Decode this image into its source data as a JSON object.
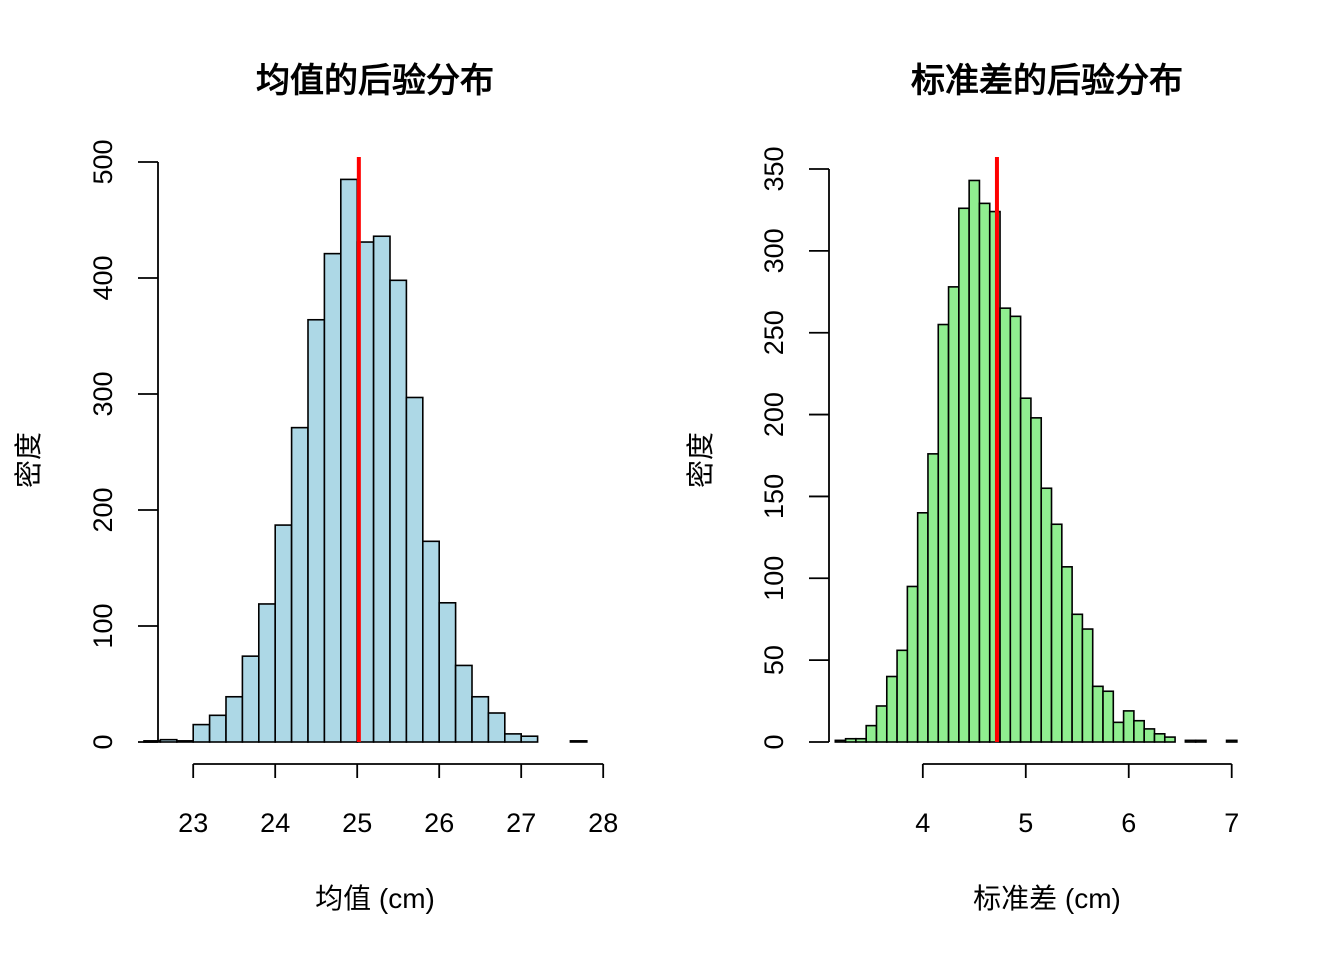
{
  "chart_data": [
    {
      "type": "bar",
      "subtype": "histogram",
      "title": "均值的后验分布",
      "xlabel": "均值 (cm)",
      "ylabel": "密度",
      "bar_color": "#add8e6",
      "edge_color": "#000000",
      "xlim": [
        22.4,
        27.9
      ],
      "ylim": [
        0,
        500
      ],
      "x_ticks": [
        23,
        24,
        25,
        26,
        27,
        28
      ],
      "y_ticks": [
        0,
        100,
        200,
        300,
        400,
        500
      ],
      "bins": [
        {
          "x0": 22.4,
          "x1": 22.6,
          "count": 1
        },
        {
          "x0": 22.6,
          "x1": 22.8,
          "count": 2
        },
        {
          "x0": 22.8,
          "x1": 23.0,
          "count": 1
        },
        {
          "x0": 23.0,
          "x1": 23.2,
          "count": 15
        },
        {
          "x0": 23.2,
          "x1": 23.4,
          "count": 23
        },
        {
          "x0": 23.4,
          "x1": 23.6,
          "count": 39
        },
        {
          "x0": 23.6,
          "x1": 23.8,
          "count": 74
        },
        {
          "x0": 23.8,
          "x1": 24.0,
          "count": 119
        },
        {
          "x0": 24.0,
          "x1": 24.2,
          "count": 187
        },
        {
          "x0": 24.2,
          "x1": 24.4,
          "count": 271
        },
        {
          "x0": 24.4,
          "x1": 24.6,
          "count": 364
        },
        {
          "x0": 24.6,
          "x1": 24.8,
          "count": 421
        },
        {
          "x0": 24.8,
          "x1": 25.0,
          "count": 485
        },
        {
          "x0": 25.0,
          "x1": 25.2,
          "count": 431
        },
        {
          "x0": 25.2,
          "x1": 25.4,
          "count": 436
        },
        {
          "x0": 25.4,
          "x1": 25.6,
          "count": 398
        },
        {
          "x0": 25.6,
          "x1": 25.8,
          "count": 297
        },
        {
          "x0": 25.8,
          "x1": 26.0,
          "count": 173
        },
        {
          "x0": 26.0,
          "x1": 26.2,
          "count": 120
        },
        {
          "x0": 26.2,
          "x1": 26.4,
          "count": 66
        },
        {
          "x0": 26.4,
          "x1": 26.6,
          "count": 39
        },
        {
          "x0": 26.6,
          "x1": 26.8,
          "count": 25
        },
        {
          "x0": 26.8,
          "x1": 27.0,
          "count": 7
        },
        {
          "x0": 27.0,
          "x1": 27.2,
          "count": 5
        },
        {
          "x0": 27.2,
          "x1": 27.4,
          "count": 0
        },
        {
          "x0": 27.4,
          "x1": 27.6,
          "count": 0
        },
        {
          "x0": 27.6,
          "x1": 27.8,
          "count": 1
        }
      ],
      "reference_line": {
        "x": 25.02,
        "color": "#ff0000"
      }
    },
    {
      "type": "bar",
      "subtype": "histogram",
      "title": "标准差的后验分布",
      "xlabel": "标准差 (cm)",
      "ylabel": "密度",
      "bar_color": "#90ee90",
      "edge_color": "#000000",
      "xlim": [
        3.05,
        7.1
      ],
      "ylim": [
        0,
        350
      ],
      "x_ticks": [
        4,
        5,
        6,
        7
      ],
      "y_ticks": [
        0,
        50,
        100,
        150,
        200,
        250,
        300,
        350
      ],
      "bins": [
        {
          "x0": 3.15,
          "x1": 3.25,
          "count": 1
        },
        {
          "x0": 3.25,
          "x1": 3.35,
          "count": 2
        },
        {
          "x0": 3.35,
          "x1": 3.45,
          "count": 2
        },
        {
          "x0": 3.45,
          "x1": 3.55,
          "count": 10
        },
        {
          "x0": 3.55,
          "x1": 3.65,
          "count": 22
        },
        {
          "x0": 3.65,
          "x1": 3.75,
          "count": 40
        },
        {
          "x0": 3.75,
          "x1": 3.85,
          "count": 56
        },
        {
          "x0": 3.85,
          "x1": 3.95,
          "count": 95
        },
        {
          "x0": 3.95,
          "x1": 4.05,
          "count": 140
        },
        {
          "x0": 4.05,
          "x1": 4.15,
          "count": 176
        },
        {
          "x0": 4.15,
          "x1": 4.25,
          "count": 255
        },
        {
          "x0": 4.25,
          "x1": 4.35,
          "count": 278
        },
        {
          "x0": 4.35,
          "x1": 4.45,
          "count": 326
        },
        {
          "x0": 4.45,
          "x1": 4.55,
          "count": 343
        },
        {
          "x0": 4.55,
          "x1": 4.65,
          "count": 329
        },
        {
          "x0": 4.65,
          "x1": 4.75,
          "count": 324
        },
        {
          "x0": 4.75,
          "x1": 4.85,
          "count": 265
        },
        {
          "x0": 4.85,
          "x1": 4.95,
          "count": 260
        },
        {
          "x0": 4.95,
          "x1": 5.05,
          "count": 210
        },
        {
          "x0": 5.05,
          "x1": 5.15,
          "count": 198
        },
        {
          "x0": 5.15,
          "x1": 5.25,
          "count": 155
        },
        {
          "x0": 5.25,
          "x1": 5.35,
          "count": 133
        },
        {
          "x0": 5.35,
          "x1": 5.45,
          "count": 107
        },
        {
          "x0": 5.45,
          "x1": 5.55,
          "count": 78
        },
        {
          "x0": 5.55,
          "x1": 5.65,
          "count": 69
        },
        {
          "x0": 5.65,
          "x1": 5.75,
          "count": 34
        },
        {
          "x0": 5.75,
          "x1": 5.85,
          "count": 31
        },
        {
          "x0": 5.85,
          "x1": 5.95,
          "count": 12
        },
        {
          "x0": 5.95,
          "x1": 6.05,
          "count": 19
        },
        {
          "x0": 6.05,
          "x1": 6.15,
          "count": 13
        },
        {
          "x0": 6.15,
          "x1": 6.25,
          "count": 8
        },
        {
          "x0": 6.25,
          "x1": 6.35,
          "count": 5
        },
        {
          "x0": 6.35,
          "x1": 6.45,
          "count": 3
        },
        {
          "x0": 6.45,
          "x1": 6.55,
          "count": 0
        },
        {
          "x0": 6.55,
          "x1": 6.65,
          "count": 1
        },
        {
          "x0": 6.65,
          "x1": 6.75,
          "count": 1
        },
        {
          "x0": 6.75,
          "x1": 6.85,
          "count": 0
        },
        {
          "x0": 6.85,
          "x1": 6.95,
          "count": 0
        },
        {
          "x0": 6.95,
          "x1": 7.05,
          "count": 1
        }
      ],
      "reference_line": {
        "x": 4.72,
        "color": "#ff0000"
      }
    }
  ]
}
